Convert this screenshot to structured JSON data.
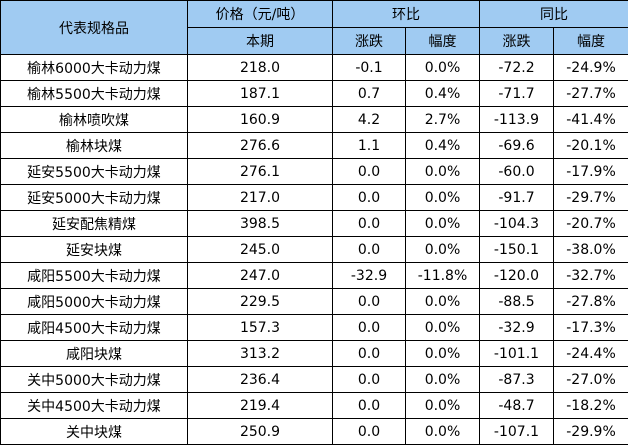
{
  "table": {
    "header": {
      "product": "代表规格品",
      "price_group": "价格（元/吨）",
      "current": "本期",
      "mom_group": "环比",
      "mom_change": "涨跌",
      "mom_rate": "幅度",
      "yoy_group": "同比",
      "yoy_change": "涨跌",
      "yoy_rate": "幅度"
    },
    "colors": {
      "header_bg": "#A0CBF2",
      "border": "#000000",
      "text": "#000000"
    },
    "rows": [
      {
        "name": "榆林6000大卡动力煤",
        "price": "218.0",
        "mom_change": "-0.1",
        "mom_rate": "0.0%",
        "yoy_change": "-72.2",
        "yoy_rate": "-24.9%"
      },
      {
        "name": "榆林5500大卡动力煤",
        "price": "187.1",
        "mom_change": "0.7",
        "mom_rate": "0.4%",
        "yoy_change": "-71.7",
        "yoy_rate": "-27.7%"
      },
      {
        "name": "榆林喷吹煤",
        "price": "160.9",
        "mom_change": "4.2",
        "mom_rate": "2.7%",
        "yoy_change": "-113.9",
        "yoy_rate": "-41.4%"
      },
      {
        "name": "榆林块煤",
        "price": "276.6",
        "mom_change": "1.1",
        "mom_rate": "0.4%",
        "yoy_change": "-69.6",
        "yoy_rate": "-20.1%"
      },
      {
        "name": "延安5500大卡动力煤",
        "price": "276.1",
        "mom_change": "0.0",
        "mom_rate": "0.0%",
        "yoy_change": "-60.0",
        "yoy_rate": "-17.9%"
      },
      {
        "name": "延安5000大卡动力煤",
        "price": "217.0",
        "mom_change": "0.0",
        "mom_rate": "0.0%",
        "yoy_change": "-91.7",
        "yoy_rate": "-29.7%"
      },
      {
        "name": "延安配焦精煤",
        "price": "398.5",
        "mom_change": "0.0",
        "mom_rate": "0.0%",
        "yoy_change": "-104.3",
        "yoy_rate": "-20.7%"
      },
      {
        "name": "延安块煤",
        "price": "245.0",
        "mom_change": "0.0",
        "mom_rate": "0.0%",
        "yoy_change": "-150.1",
        "yoy_rate": "-38.0%"
      },
      {
        "name": "咸阳5500大卡动力煤",
        "price": "247.0",
        "mom_change": "-32.9",
        "mom_rate": "-11.8%",
        "yoy_change": "-120.0",
        "yoy_rate": "-32.7%"
      },
      {
        "name": "咸阳5000大卡动力煤",
        "price": "229.5",
        "mom_change": "0.0",
        "mom_rate": "0.0%",
        "yoy_change": "-88.5",
        "yoy_rate": "-27.8%"
      },
      {
        "name": "咸阳4500大卡动力煤",
        "price": "157.3",
        "mom_change": "0.0",
        "mom_rate": "0.0%",
        "yoy_change": "-32.9",
        "yoy_rate": "-17.3%"
      },
      {
        "name": "咸阳块煤",
        "price": "313.2",
        "mom_change": "0.0",
        "mom_rate": "0.0%",
        "yoy_change": "-101.1",
        "yoy_rate": "-24.4%"
      },
      {
        "name": "关中5000大卡动力煤",
        "price": "236.4",
        "mom_change": "0.0",
        "mom_rate": "0.0%",
        "yoy_change": "-87.3",
        "yoy_rate": "-27.0%"
      },
      {
        "name": "关中4500大卡动力煤",
        "price": "219.4",
        "mom_change": "0.0",
        "mom_rate": "0.0%",
        "yoy_change": "-48.7",
        "yoy_rate": "-18.2%"
      },
      {
        "name": "关中块煤",
        "price": "250.9",
        "mom_change": "0.0",
        "mom_rate": "0.0%",
        "yoy_change": "-107.1",
        "yoy_rate": "-29.9%"
      }
    ]
  }
}
